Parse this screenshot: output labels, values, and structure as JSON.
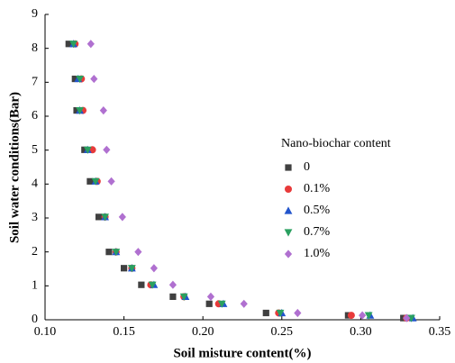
{
  "chart_data": {
    "type": "scatter",
    "x_label": "Soil misture content(%)",
    "y_label": "Soil water conditions(Bar)",
    "legend_title": "Nano-biochar content",
    "xlim": [
      0.1,
      0.35
    ],
    "xticks": [
      {
        "value": 0.1,
        "label": "0.10"
      },
      {
        "value": 0.15,
        "label": "0.15"
      },
      {
        "value": 0.2,
        "label": "0.20"
      },
      {
        "value": 0.25,
        "label": "0.25"
      },
      {
        "value": 0.3,
        "label": "0.30"
      },
      {
        "value": 0.35,
        "label": "0.35"
      }
    ],
    "ylim": [
      0,
      9
    ],
    "yticks": [
      0,
      1,
      2,
      3,
      4,
      5,
      6,
      7,
      8,
      9
    ],
    "series": [
      {
        "name": "0",
        "color": "#404040",
        "marker": "square",
        "x": [
          0.115,
          0.119,
          0.12,
          0.125,
          0.1285,
          0.134,
          0.1405,
          0.15,
          0.161,
          0.181,
          0.204,
          0.24,
          0.292,
          0.327
        ],
        "values": [
          8.13,
          7.1,
          6.17,
          5.01,
          4.08,
          3.03,
          2.0,
          1.52,
          1.03,
          0.68,
          0.47,
          0.2,
          0.13,
          0.05
        ]
      },
      {
        "name": "0.1%",
        "color": "#e83a3a",
        "marker": "circle",
        "x": [
          0.119,
          0.123,
          0.124,
          0.13,
          0.133,
          0.138,
          0.145,
          0.155,
          0.167,
          0.188,
          0.21,
          0.248,
          0.294,
          0.329
        ],
        "values": [
          8.13,
          7.1,
          6.17,
          5.01,
          4.08,
          3.03,
          2.0,
          1.52,
          1.03,
          0.68,
          0.47,
          0.2,
          0.13,
          0.05
        ]
      },
      {
        "name": "0.5%",
        "color": "#2255cc",
        "marker": "triangle",
        "x": [
          0.118,
          0.121,
          0.122,
          0.127,
          0.132,
          0.138,
          0.145,
          0.155,
          0.169,
          0.189,
          0.213,
          0.25,
          0.306,
          0.333
        ],
        "values": [
          8.13,
          7.1,
          6.17,
          5.01,
          4.08,
          3.03,
          2.0,
          1.52,
          1.03,
          0.68,
          0.47,
          0.2,
          0.13,
          0.05
        ]
      },
      {
        "name": "0.7%",
        "color": "#2aa060",
        "marker": "triangle-down",
        "x": [
          0.118,
          0.122,
          0.122,
          0.127,
          0.132,
          0.138,
          0.145,
          0.155,
          0.168,
          0.188,
          0.212,
          0.249,
          0.305,
          0.332
        ],
        "values": [
          8.13,
          7.1,
          6.17,
          5.01,
          4.08,
          3.03,
          2.0,
          1.52,
          1.03,
          0.68,
          0.47,
          0.2,
          0.13,
          0.05
        ]
      },
      {
        "name": "1.0%",
        "color": "#b070d0",
        "marker": "diamond",
        "x": [
          0.129,
          0.131,
          0.137,
          0.139,
          0.142,
          0.149,
          0.159,
          0.169,
          0.181,
          0.205,
          0.226,
          0.26,
          0.301,
          0.329
        ],
        "values": [
          8.13,
          7.1,
          6.17,
          5.01,
          4.08,
          3.03,
          2.0,
          1.52,
          1.03,
          0.68,
          0.47,
          0.2,
          0.13,
          0.05
        ]
      }
    ]
  }
}
